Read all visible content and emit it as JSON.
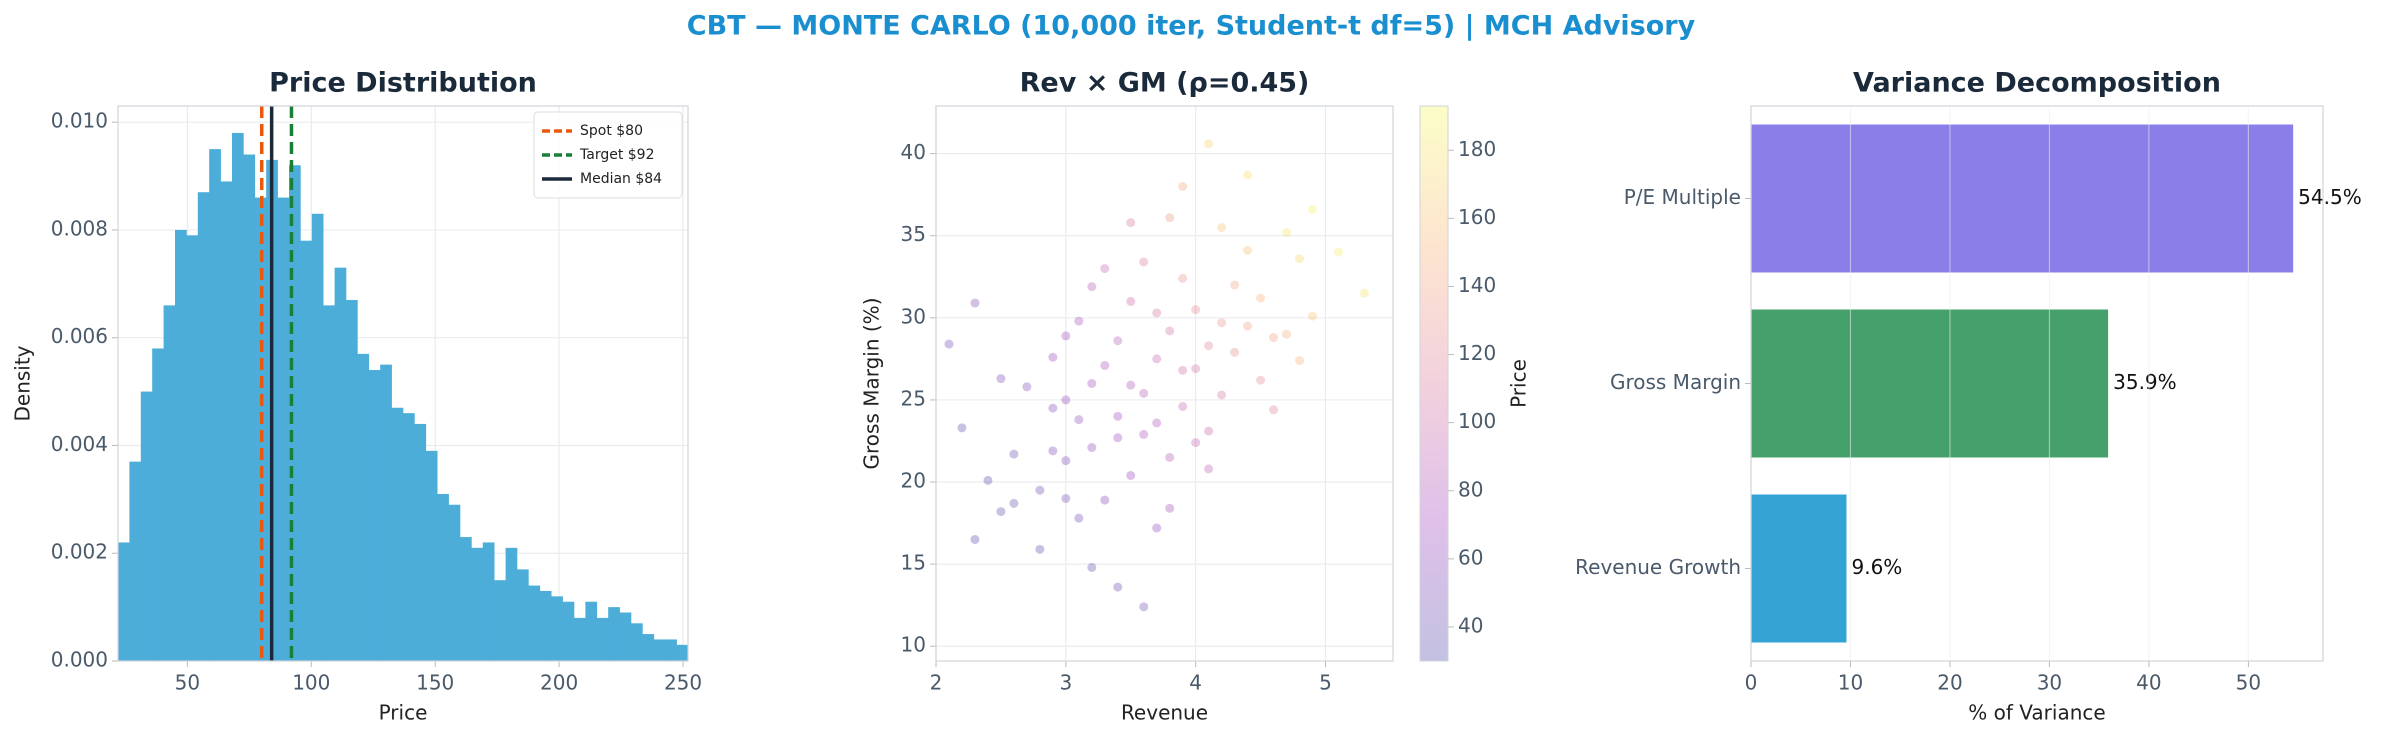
{
  "title": "CBT — MONTE CARLO (10,000 iter, Student-t df=5) | MCH Advisory",
  "chart_data": [
    {
      "type": "histogram",
      "title": "Price Distribution",
      "x_label": "Price",
      "y_label": "Density",
      "bins": [
        22,
        26.6,
        31.2,
        35.8,
        40.4,
        45,
        49.6,
        54.2,
        58.8,
        63.4,
        68,
        72.6,
        77.2,
        81.8,
        86.4,
        91,
        95.6,
        100.2,
        104.8,
        109.4,
        114,
        118.6,
        123.2,
        127.8,
        132.4,
        137,
        141.6,
        146.2,
        150.8,
        155.4,
        160,
        164.6,
        169.2,
        173.8,
        178.4,
        183,
        187.6,
        192.2,
        196.8,
        201.4,
        206,
        210.6,
        215.2,
        219.8,
        224.4,
        229,
        233.6,
        238.2,
        242.8,
        247.4,
        252
      ],
      "values": [
        0.0022,
        0.0037,
        0.005,
        0.0058,
        0.0066,
        0.008,
        0.0079,
        0.0087,
        0.0095,
        0.0089,
        0.0098,
        0.0094,
        0.0086,
        0.0093,
        0.0086,
        0.0092,
        0.0078,
        0.0083,
        0.0066,
        0.0073,
        0.0067,
        0.0057,
        0.0054,
        0.0055,
        0.0047,
        0.0046,
        0.0044,
        0.0039,
        0.0031,
        0.0029,
        0.0023,
        0.0021,
        0.0022,
        0.0015,
        0.0021,
        0.0017,
        0.0014,
        0.0013,
        0.0012,
        0.0011,
        0.0008,
        0.0011,
        0.0008,
        0.001,
        0.0009,
        0.0007,
        0.0005,
        0.0004,
        0.0004,
        0.0003
      ],
      "color": "#4badd8",
      "reference_lines": [
        {
          "name": "Spot $80",
          "value": 80,
          "color": "#e8590c",
          "style": "dashed"
        },
        {
          "name": "Target $92",
          "value": 92,
          "color": "#1a7f37",
          "style": "dashed"
        },
        {
          "name": "Median $84",
          "value": 84,
          "color": "#1b2a3a",
          "style": "solid"
        }
      ],
      "legend": "upper right",
      "xlim": [
        22,
        252
      ],
      "xticks": [
        50,
        100,
        150,
        200,
        250
      ],
      "ylim": [
        0,
        0.0103
      ],
      "yticks": [
        {
          "value": 0,
          "label": "0.000"
        },
        {
          "value": 0.002,
          "label": "0.002"
        },
        {
          "value": 0.004,
          "label": "0.004"
        },
        {
          "value": 0.006,
          "label": "0.006"
        },
        {
          "value": 0.008,
          "label": "0.008"
        },
        {
          "value": 0.01,
          "label": "0.010"
        }
      ],
      "grid": true
    },
    {
      "type": "scatter",
      "title": "Rev × GM (ρ=0.45)",
      "x_label": "Revenue",
      "y_label": "Gross Margin (%)",
      "x": [
        3.2,
        3.6,
        4.1,
        2.8,
        3.9,
        3.4,
        4.5,
        3.0,
        3.7,
        4.3,
        2.5,
        3.3,
        4.0,
        3.5,
        4.8,
        2.9,
        3.8,
        3.1,
        4.2,
        3.6,
        2.6,
        4.6,
        3.9,
        3.2,
        4.4,
        2.3,
        3.7,
        3.0,
        4.1,
        3.4,
        4.9,
        2.7,
        3.5,
        3.8,
        4.2,
        3.1,
        2.4,
        4.7,
        3.3,
        3.9,
        4.0,
        2.9,
        3.6,
        4.5,
        3.2,
        3.8,
        2.2,
        4.3,
        3.5,
        5.1,
        3.0,
        4.6,
        2.8,
        3.7,
        4.1,
        3.4,
        4.4,
        2.6,
        3.9,
        3.3,
        5.3,
        2.1,
        3.6,
        4.2,
        3.1,
        4.8,
        2.5,
        3.7,
        4.0,
        3.5,
        4.4,
        2.9,
        3.2,
        4.7,
        3.8,
        2.3,
        4.1,
        3.4,
        4.9,
        3.0
      ],
      "values": [
        22.1,
        25.4,
        28.3,
        19.5,
        26.8,
        24.0,
        31.2,
        21.3,
        23.6,
        27.9,
        18.2,
        27.1,
        30.5,
        20.4,
        33.6,
        24.5,
        29.2,
        17.8,
        25.3,
        22.9,
        21.7,
        28.8,
        32.4,
        26.0,
        34.1,
        16.5,
        27.5,
        19.0,
        23.1,
        28.6,
        30.1,
        25.8,
        31.0,
        21.5,
        29.7,
        23.8,
        20.1,
        35.2,
        18.9,
        24.6,
        26.9,
        27.6,
        33.4,
        26.2,
        14.8,
        36.1,
        23.3,
        32.0,
        25.9,
        34.0,
        28.9,
        24.4,
        15.9,
        30.3,
        20.8,
        22.7,
        29.5,
        18.7,
        38.0,
        33.0,
        31.5,
        28.4,
        12.4,
        35.5,
        29.8,
        27.4,
        26.3,
        17.2,
        22.4,
        35.8,
        38.7,
        21.9,
        31.9,
        29.0,
        18.4,
        30.9,
        40.6,
        13.6,
        36.6,
        25.0
      ],
      "color_values": [
        62,
        84,
        118,
        45,
        101,
        72,
        150,
        55,
        80,
        125,
        38,
        78,
        122,
        64,
        172,
        58,
        104,
        48,
        108,
        76,
        46,
        138,
        130,
        70,
        158,
        35,
        92,
        50,
        98,
        86,
        160,
        54,
        96,
        82,
        128,
        62,
        40,
        178,
        55,
        94,
        106,
        66,
        112,
        124,
        42,
        132,
        40,
        142,
        80,
        185,
        70,
        118,
        40,
        104,
        90,
        68,
        136,
        42,
        144,
        92,
        180,
        48,
        46,
        160,
        76,
        152,
        50,
        60,
        92,
        110,
        176,
        56,
        84,
        148,
        70,
        52,
        172,
        44,
        188,
        62
      ],
      "colormap": [
        "#0d0887",
        "#7e03a8",
        "#cc4778",
        "#f89540",
        "#f0f921"
      ],
      "alpha": 0.25,
      "clim": [
        30,
        193
      ],
      "cticks": [
        40,
        60,
        80,
        100,
        120,
        140,
        160,
        180
      ],
      "colorbar_label": "Price",
      "xlim": [
        2,
        5.52
      ],
      "xticks": [
        2,
        3,
        4,
        5
      ],
      "ylim": [
        9.1,
        42.9
      ],
      "yticks": [
        10,
        15,
        20,
        25,
        30,
        35,
        40
      ],
      "grid": true
    },
    {
      "type": "barh",
      "title": "Variance Decomposition",
      "x_label": "% of Variance",
      "categories": [
        "Revenue Growth",
        "Gross Margin",
        "P/E Multiple"
      ],
      "values": [
        9.6,
        35.9,
        54.5
      ],
      "value_labels": [
        "9.6%",
        "35.9%",
        "54.5%"
      ],
      "colors": [
        "#35a2d4",
        "#46a06b",
        "#8a7fe8"
      ],
      "xlim": [
        0,
        57.5
      ],
      "xticks": [
        0,
        10,
        20,
        30,
        40,
        50
      ],
      "grid": true
    }
  ]
}
